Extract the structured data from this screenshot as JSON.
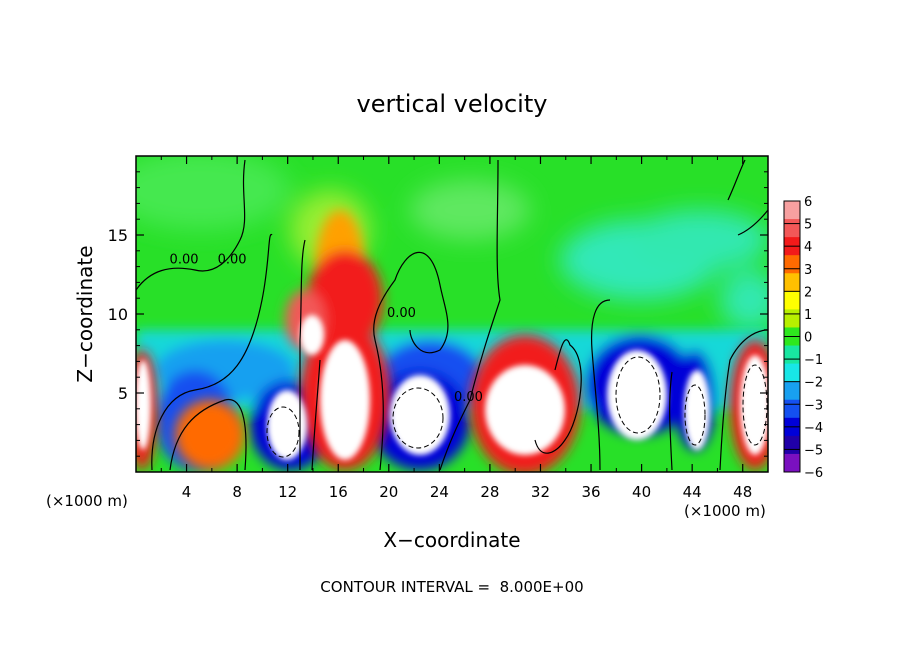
{
  "chart_data": {
    "type": "heatmap",
    "title": "vertical velocity",
    "xlabel": "X−coordinate",
    "ylabel": "Z−coordinate",
    "x_unit_left": "(×1000 m)",
    "x_unit_right": "(×1000 m)",
    "xlim": [
      0,
      50
    ],
    "ylim": [
      0,
      20
    ],
    "x_ticks": [
      4,
      8,
      12,
      16,
      20,
      24,
      28,
      32,
      36,
      40,
      44,
      48
    ],
    "y_ticks": [
      5,
      10,
      15
    ],
    "colorbar": {
      "ticks": [
        "6",
        "5",
        "4",
        "3",
        "2",
        "1",
        "0",
        "−1",
        "−2",
        "−3",
        "−4",
        "−5",
        "−6"
      ],
      "colors": [
        "#f7a0a0",
        "#f25858",
        "#f21a1a",
        "#ff6a00",
        "#ffc000",
        "#ffff00",
        "#b8f000",
        "#2ee81e",
        "#18e6a0",
        "#18e6e6",
        "#18a0f0",
        "#1450f0",
        "#0000d8",
        "#2000a8",
        "#7a10c0"
      ]
    },
    "contour_labels": [
      {
        "text": "0.00",
        "x": 3.8,
        "z": 13.2
      },
      {
        "text": "0.00",
        "x": 7.6,
        "z": 13.2
      },
      {
        "text": "0.00",
        "x": 21.0,
        "z": 9.8
      },
      {
        "text": "0.00",
        "x": 26.3,
        "z": 4.5
      }
    ],
    "footer": "CONTOUR INTERVAL =  8.000E+00"
  }
}
